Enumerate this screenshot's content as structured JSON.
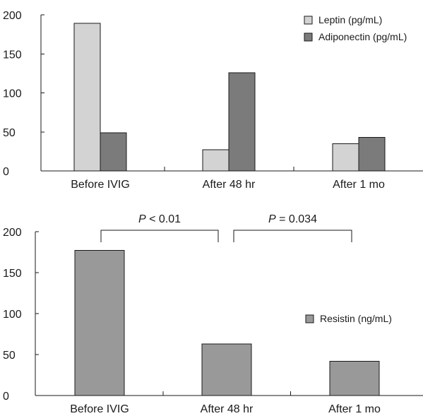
{
  "chart_data": [
    {
      "type": "bar",
      "categories": [
        "Before IVIG",
        "After 48 hr",
        "After 1 mo"
      ],
      "series": [
        {
          "name": "Leptin (pg/mL)",
          "values": [
            189,
            27,
            35
          ],
          "color": "#d3d3d3"
        },
        {
          "name": "Adiponectin (pg/mL)",
          "values": [
            49,
            126,
            43
          ],
          "color": "#7b7b7b"
        }
      ],
      "yticks": [
        0,
        50,
        100,
        150,
        200
      ],
      "ylim": [
        0,
        200
      ],
      "legend_position": "top-right",
      "grid": false
    },
    {
      "type": "bar",
      "categories": [
        "Before IVIG",
        "After 48 hr",
        "After 1 mo"
      ],
      "series": [
        {
          "name": "Resistin (ng/mL)",
          "values": [
            177,
            63,
            42
          ],
          "color": "#999999"
        }
      ],
      "yticks": [
        0,
        50,
        100,
        150,
        200
      ],
      "ylim": [
        0,
        200
      ],
      "legend_position": "right",
      "grid": false,
      "annotations": [
        {
          "from": "Before IVIG",
          "to": "After 48 hr",
          "italic": "P",
          "text": " < 0.01"
        },
        {
          "from": "After 48 hr",
          "to": "After 1 mo",
          "italic": "P",
          "text": " = 0.034"
        }
      ]
    }
  ]
}
